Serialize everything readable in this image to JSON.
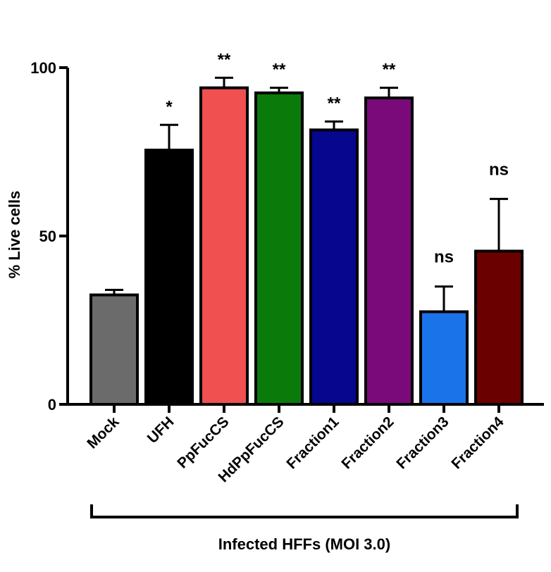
{
  "chart_data": {
    "type": "bar",
    "categories": [
      "Mock",
      "UFH",
      "PpFucCS",
      "HdPpFucCS",
      "Fraction1",
      "Fraction2",
      "Fraction3",
      "Fraction4"
    ],
    "values": [
      32.5,
      75.5,
      94,
      92.5,
      81.5,
      91,
      27.5,
      45.5
    ],
    "errors": [
      1.5,
      7.5,
      3,
      1.5,
      2.5,
      3,
      7.5,
      15.5
    ],
    "significance": [
      "",
      "*",
      "**",
      "**",
      "**",
      "**",
      "ns",
      "ns"
    ],
    "colors": [
      "#6b6b6b",
      "#000000",
      "#f05050",
      "#0a7a0a",
      "#06068f",
      "#7a0a7a",
      "#1a73e8",
      "#6b0000"
    ],
    "ylabel": "% Live cells",
    "xlabel": "",
    "group_label": "Infected HFFs (MOI 3.0)",
    "ylim": [
      0,
      100
    ],
    "yticks": [
      0,
      50,
      100
    ],
    "grid": false
  }
}
